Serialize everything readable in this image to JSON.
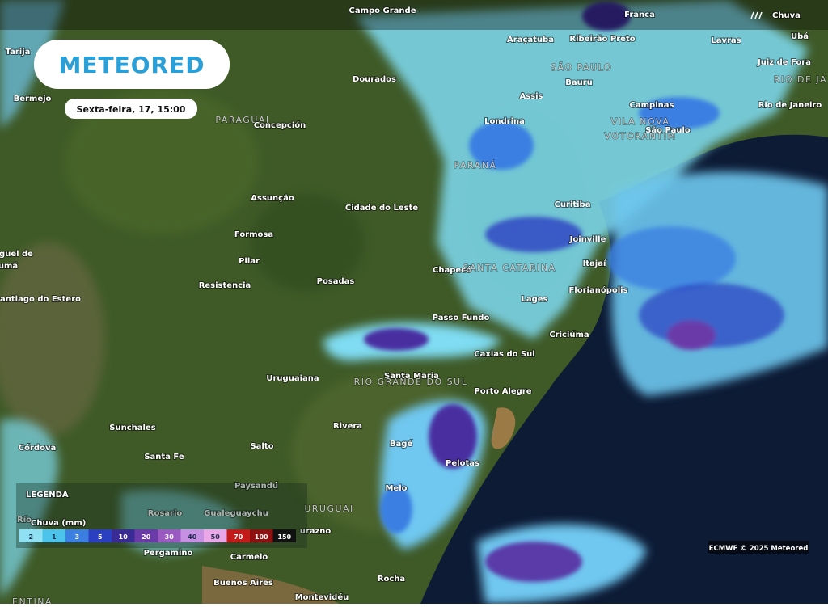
{
  "header": {
    "logo": "METEORED",
    "datetime": "Sexta-feira, 17, 15:00",
    "layer": "Chuva"
  },
  "map": {
    "labels": [
      "Campo Grande",
      "Franca",
      "Araçatuba",
      "Ribeirão Preto",
      "Lavras",
      "Ubá",
      "Tarija",
      "SÃO PAULO",
      "Juiz de Fora",
      "RIO DE JA",
      "Bermejo",
      "Dourados",
      "Bauru",
      "Assis",
      "Campinas",
      "Rio de Janeiro",
      "PARAGUAI",
      "Concepción",
      "Londrina",
      "VILA NOVA",
      "VOTORANTIM",
      "São Paulo",
      "PARANÁ",
      "Assunção",
      "Cidade do Leste",
      "Curitiba",
      "Formosa",
      "Joinville",
      "Pilar",
      "Chapecó",
      "SANTA CATARINA",
      "Itajaí",
      "guel de",
      "umã",
      "Resistencia",
      "Posadas",
      "Florianópolis",
      "antiago do Estero",
      "Lages",
      "Passo Fundo",
      "Criciúma",
      "Caxias do Sul",
      "Uruguaiana",
      "Santa Maria",
      "RIO GRANDE DO SUL",
      "Porto Alegre",
      "Sunchales",
      "Rivera",
      "Córdova",
      "Santa Fe",
      "Salto",
      "Bagé",
      "Pelotas",
      "Paysandú",
      "Melo",
      "Rosario",
      "Gualeguaychu",
      "URUGUAI",
      "Río",
      "urazno",
      "Pergamino",
      "Carmelo",
      "Buenos Aires",
      "Rocha",
      "Montevidéu",
      "ENTINA"
    ]
  },
  "legend": {
    "title": "LEGENDA",
    "unit": "Chuva (mm)",
    "steps": [
      {
        "label": "2",
        "color": "#8fe0f2"
      },
      {
        "label": "1",
        "color": "#4cc3ea"
      },
      {
        "label": "3",
        "color": "#3b7fe2"
      },
      {
        "label": "5",
        "color": "#2b3fc2"
      },
      {
        "label": "10",
        "color": "#3a2a96"
      },
      {
        "label": "20",
        "color": "#6a3aa8"
      },
      {
        "label": "30",
        "color": "#9a5ac2"
      },
      {
        "label": "40",
        "color": "#c890e2"
      },
      {
        "label": "50",
        "color": "#eaa6e6"
      },
      {
        "label": "70",
        "color": "#c41a1a"
      },
      {
        "label": "100",
        "color": "#8e1010"
      },
      {
        "label": "150",
        "color": "#111111"
      }
    ]
  },
  "credit": "ECMWF © 2025 Meteored"
}
